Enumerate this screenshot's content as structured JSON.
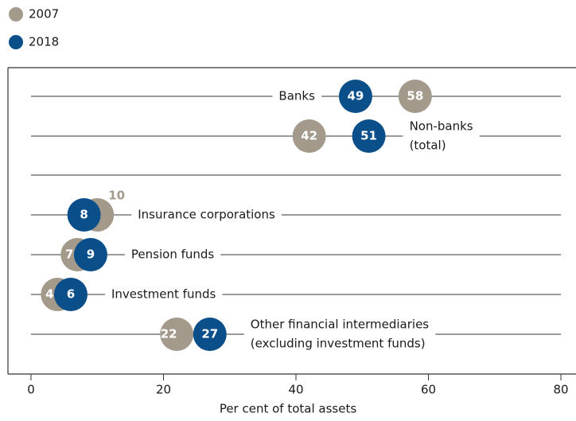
{
  "chart_data": {
    "type": "dot",
    "x_label": "Per cent of total assets",
    "categories": [
      [
        "Banks"
      ],
      [
        "Non-banks",
        "(total)"
      ],
      [
        "Insurance corporations"
      ],
      [
        "Pension funds"
      ],
      [
        "Investment funds"
      ],
      [
        "Other financial intermediaries",
        "(excluding investment funds)"
      ]
    ],
    "series": [
      {
        "name": "2007",
        "color": "#a39a8c",
        "values": [
          58,
          42,
          10,
          7,
          4,
          22
        ]
      },
      {
        "name": "2018",
        "color": "#0b4f8a",
        "values": [
          49,
          51,
          8,
          9,
          6,
          27
        ]
      }
    ],
    "xlim": [
      0,
      80
    ],
    "xticks": [
      0,
      20,
      40,
      60,
      80
    ]
  }
}
